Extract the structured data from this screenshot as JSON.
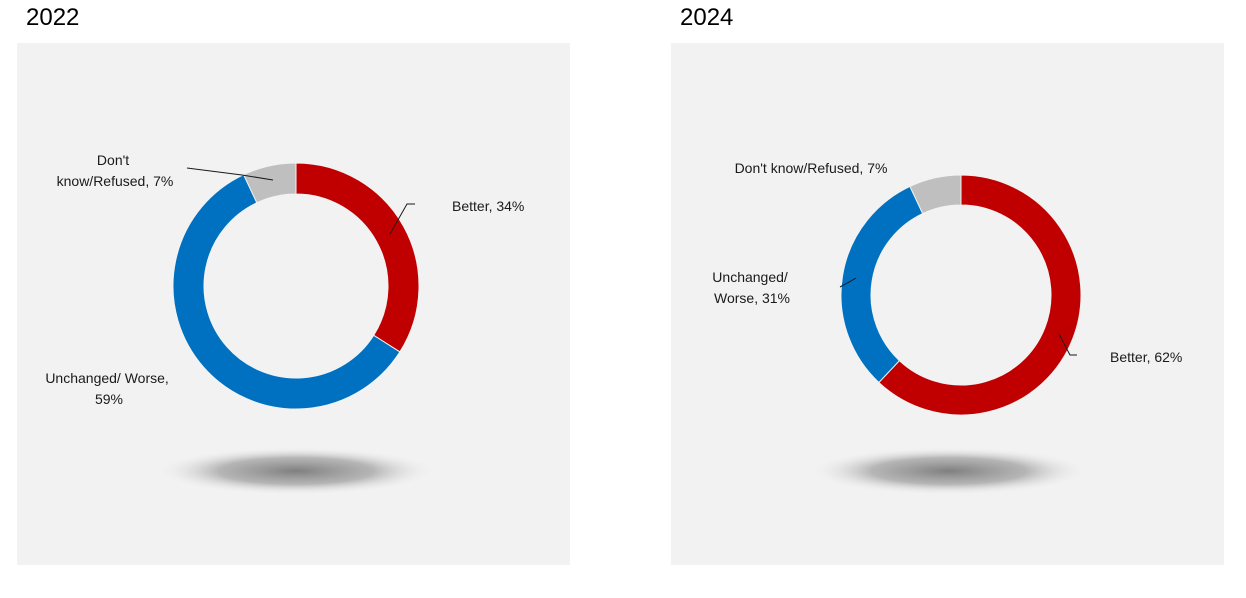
{
  "charts": [
    {
      "title": "2022",
      "colors": {
        "better": "#c00000",
        "worse": "#0070c0",
        "dk": "#bfbfbf"
      },
      "chart_data": {
        "type": "pie",
        "variant": "donut",
        "categories": [
          "Better",
          "Unchanged/ Worse",
          "Don't know/Refused"
        ],
        "values": [
          34,
          59,
          7
        ],
        "unit": "%",
        "title": "2022"
      },
      "labels": {
        "better": [
          "Better, 34%"
        ],
        "worse": [
          "Unchanged/ Worse,",
          "59%"
        ],
        "dk": [
          "Don't",
          "know/Refused, 7%"
        ]
      }
    },
    {
      "title": "2024",
      "colors": {
        "better": "#c00000",
        "worse": "#0070c0",
        "dk": "#bfbfbf"
      },
      "chart_data": {
        "type": "pie",
        "variant": "donut",
        "categories": [
          "Better",
          "Unchanged/ Worse",
          "Don't know/Refused"
        ],
        "values": [
          62,
          31,
          7
        ],
        "unit": "%",
        "title": "2024"
      },
      "labels": {
        "better": [
          "Better, 62%"
        ],
        "worse": [
          "Unchanged/",
          "Worse, 31%"
        ],
        "dk": [
          "Don't know/Refused, 7%"
        ]
      }
    }
  ]
}
